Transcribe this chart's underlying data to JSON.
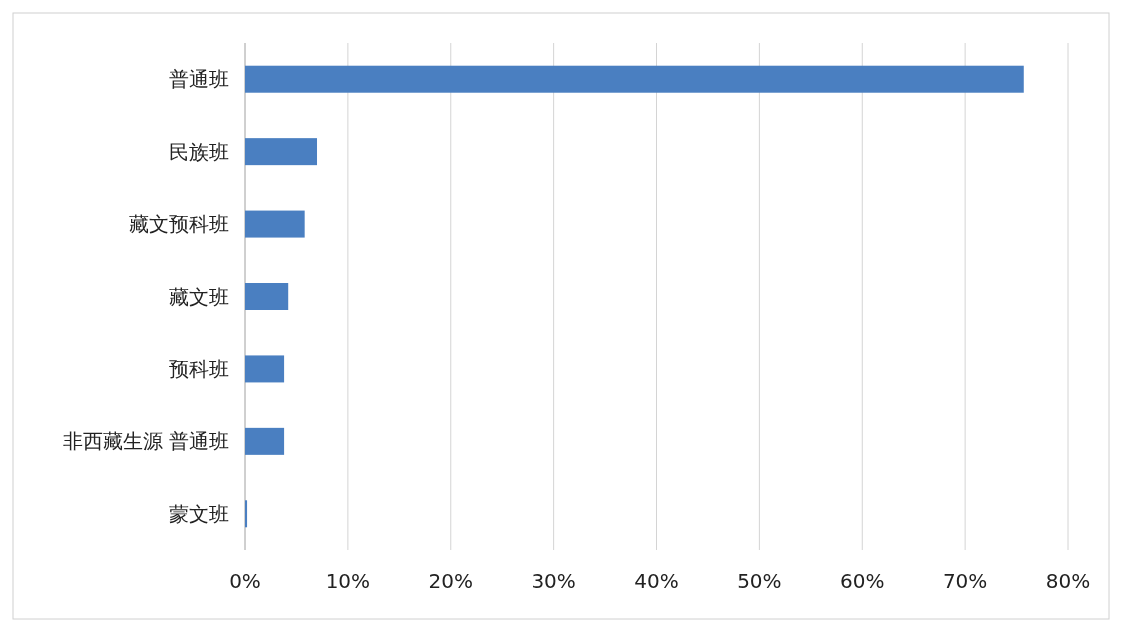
{
  "chart_data": {
    "type": "bar",
    "orientation": "horizontal",
    "categories": [
      "普通班",
      "民族班",
      "藏文预科班",
      "藏文班",
      "预科班",
      "非西藏生源 普通班",
      "蒙文班"
    ],
    "values": [
      75.7,
      7.0,
      5.8,
      4.2,
      3.8,
      3.8,
      0.2
    ],
    "color": "#4a7fc1",
    "xlim": [
      0,
      80
    ],
    "xticks": [
      {
        "value": 0,
        "label": "0%"
      },
      {
        "value": 10,
        "label": "10%"
      },
      {
        "value": 20,
        "label": "20%"
      },
      {
        "value": 30,
        "label": "30%"
      },
      {
        "value": 40,
        "label": "40%"
      },
      {
        "value": 50,
        "label": "50%"
      },
      {
        "value": 60,
        "label": "60%"
      },
      {
        "value": 70,
        "label": "70%"
      },
      {
        "value": 80,
        "label": "80%"
      }
    ],
    "grid": "x"
  }
}
